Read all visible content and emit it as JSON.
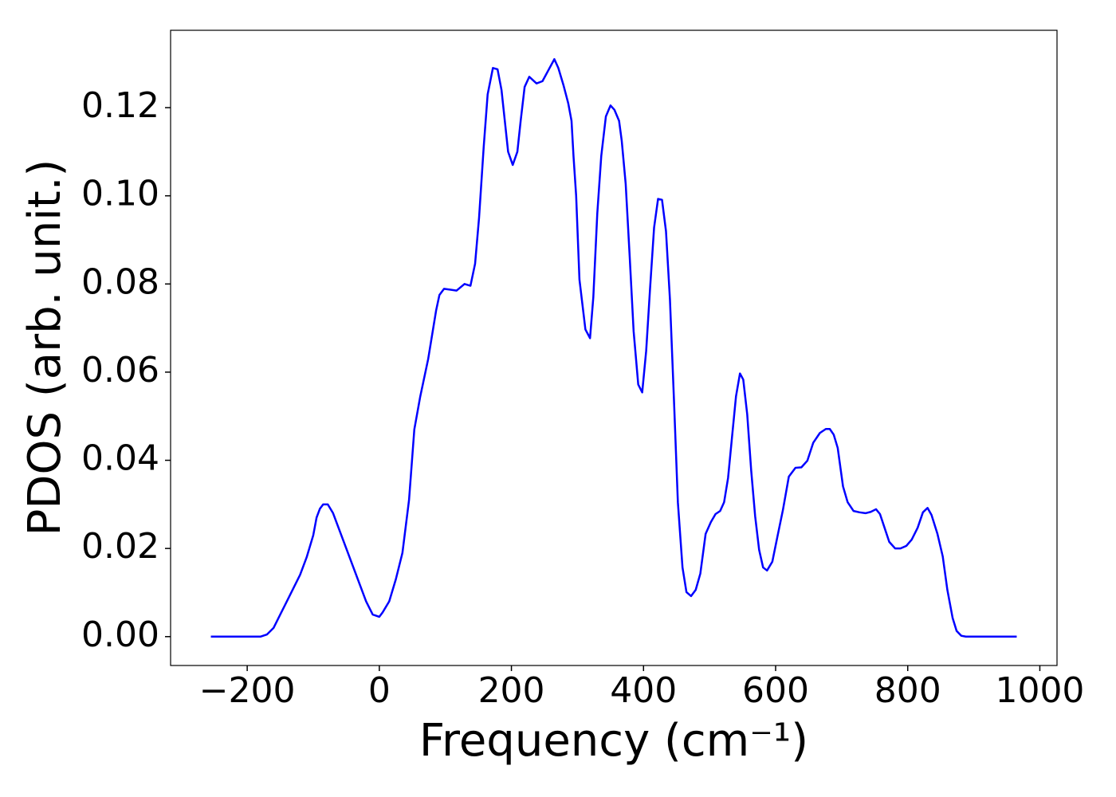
{
  "chart_data": {
    "type": "line",
    "xlabel": "Frequency (cm⁻¹)",
    "ylabel": "PDOS (arb. unit.)",
    "xlim": [
      -316,
      1026
    ],
    "ylim": [
      -0.00655,
      0.13755
    ],
    "xticks": [
      {
        "value": -200,
        "label": "−200"
      },
      0,
      200,
      400,
      600,
      800,
      1000
    ],
    "yticks": [
      {
        "value": 0,
        "label": "0.00"
      },
      0.02,
      0.04,
      0.06,
      0.08,
      {
        "value": 0.1,
        "label": "0.10"
      },
      0.12
    ],
    "x": [
      -255,
      -180,
      -170,
      -160,
      -150,
      -140,
      -130,
      -120,
      -110,
      -100,
      -95,
      -90,
      -85,
      -78,
      -70,
      -60,
      -50,
      -40,
      -30,
      -20,
      -10,
      0,
      5,
      15,
      25,
      35,
      45,
      53,
      62,
      74,
      86,
      91,
      98,
      108,
      117,
      129,
      138,
      145,
      151,
      158,
      164,
      172,
      179,
      185,
      195,
      202,
      209,
      214,
      220,
      227,
      238,
      247,
      256,
      265,
      271,
      279,
      286,
      291,
      294,
      298,
      303,
      312,
      319,
      324,
      330,
      336,
      343,
      350,
      356,
      363,
      367,
      373,
      379,
      385,
      392,
      398,
      404,
      410,
      416,
      422,
      428,
      434,
      440,
      446,
      452,
      459,
      465,
      472,
      479,
      486,
      494,
      502,
      509,
      516,
      522,
      528,
      534,
      540,
      546,
      551,
      557,
      563,
      569,
      575,
      581,
      587,
      595,
      603,
      611,
      620,
      630,
      639,
      648,
      657,
      667,
      676,
      682,
      688,
      694,
      702,
      709,
      718,
      727,
      736,
      744,
      752,
      758,
      764,
      772,
      781,
      789,
      798,
      806,
      815,
      823,
      830,
      836,
      845,
      853,
      860,
      868,
      874,
      881,
      888,
      965
    ],
    "series": [
      {
        "name": "PDOS",
        "color": "#0000ff",
        "values": [
          0,
          0,
          0.0005,
          0.002,
          0.005,
          0.008,
          0.011,
          0.014,
          0.018,
          0.023,
          0.027,
          0.029,
          0.03,
          0.03,
          0.028,
          0.024,
          0.02,
          0.016,
          0.012,
          0.008,
          0.005,
          0.0045,
          0.0055,
          0.008,
          0.013,
          0.019,
          0.031,
          0.047,
          0.0545,
          0.063,
          0.074,
          0.0775,
          0.0789,
          0.0787,
          0.0785,
          0.08,
          0.0796,
          0.0846,
          0.095,
          0.111,
          0.123,
          0.129,
          0.1287,
          0.124,
          0.11,
          0.107,
          0.11,
          0.117,
          0.1247,
          0.127,
          0.1255,
          0.126,
          0.1285,
          0.131,
          0.129,
          0.125,
          0.121,
          0.117,
          0.109,
          0.1,
          0.081,
          0.0697,
          0.0677,
          0.077,
          0.096,
          0.109,
          0.118,
          0.1205,
          0.1195,
          0.117,
          0.1125,
          0.1027,
          0.0864,
          0.0693,
          0.0572,
          0.0554,
          0.0648,
          0.0792,
          0.0928,
          0.0993,
          0.0991,
          0.092,
          0.0765,
          0.054,
          0.0305,
          0.0157,
          0.0101,
          0.0092,
          0.0106,
          0.0143,
          0.0233,
          0.026,
          0.0278,
          0.0285,
          0.0305,
          0.036,
          0.0453,
          0.0545,
          0.0597,
          0.0583,
          0.0504,
          0.0377,
          0.0273,
          0.0197,
          0.0157,
          0.015,
          0.017,
          0.0229,
          0.0287,
          0.0363,
          0.0383,
          0.0384,
          0.0399,
          0.044,
          0.0462,
          0.0471,
          0.0471,
          0.0458,
          0.0428,
          0.0341,
          0.0305,
          0.0285,
          0.0282,
          0.028,
          0.0283,
          0.0289,
          0.0278,
          0.0251,
          0.0215,
          0.02,
          0.02,
          0.0206,
          0.022,
          0.0247,
          0.0282,
          0.0292,
          0.0276,
          0.0233,
          0.0182,
          0.0106,
          0.0042,
          0.0013,
          0.0002,
          0,
          0
        ]
      }
    ]
  }
}
